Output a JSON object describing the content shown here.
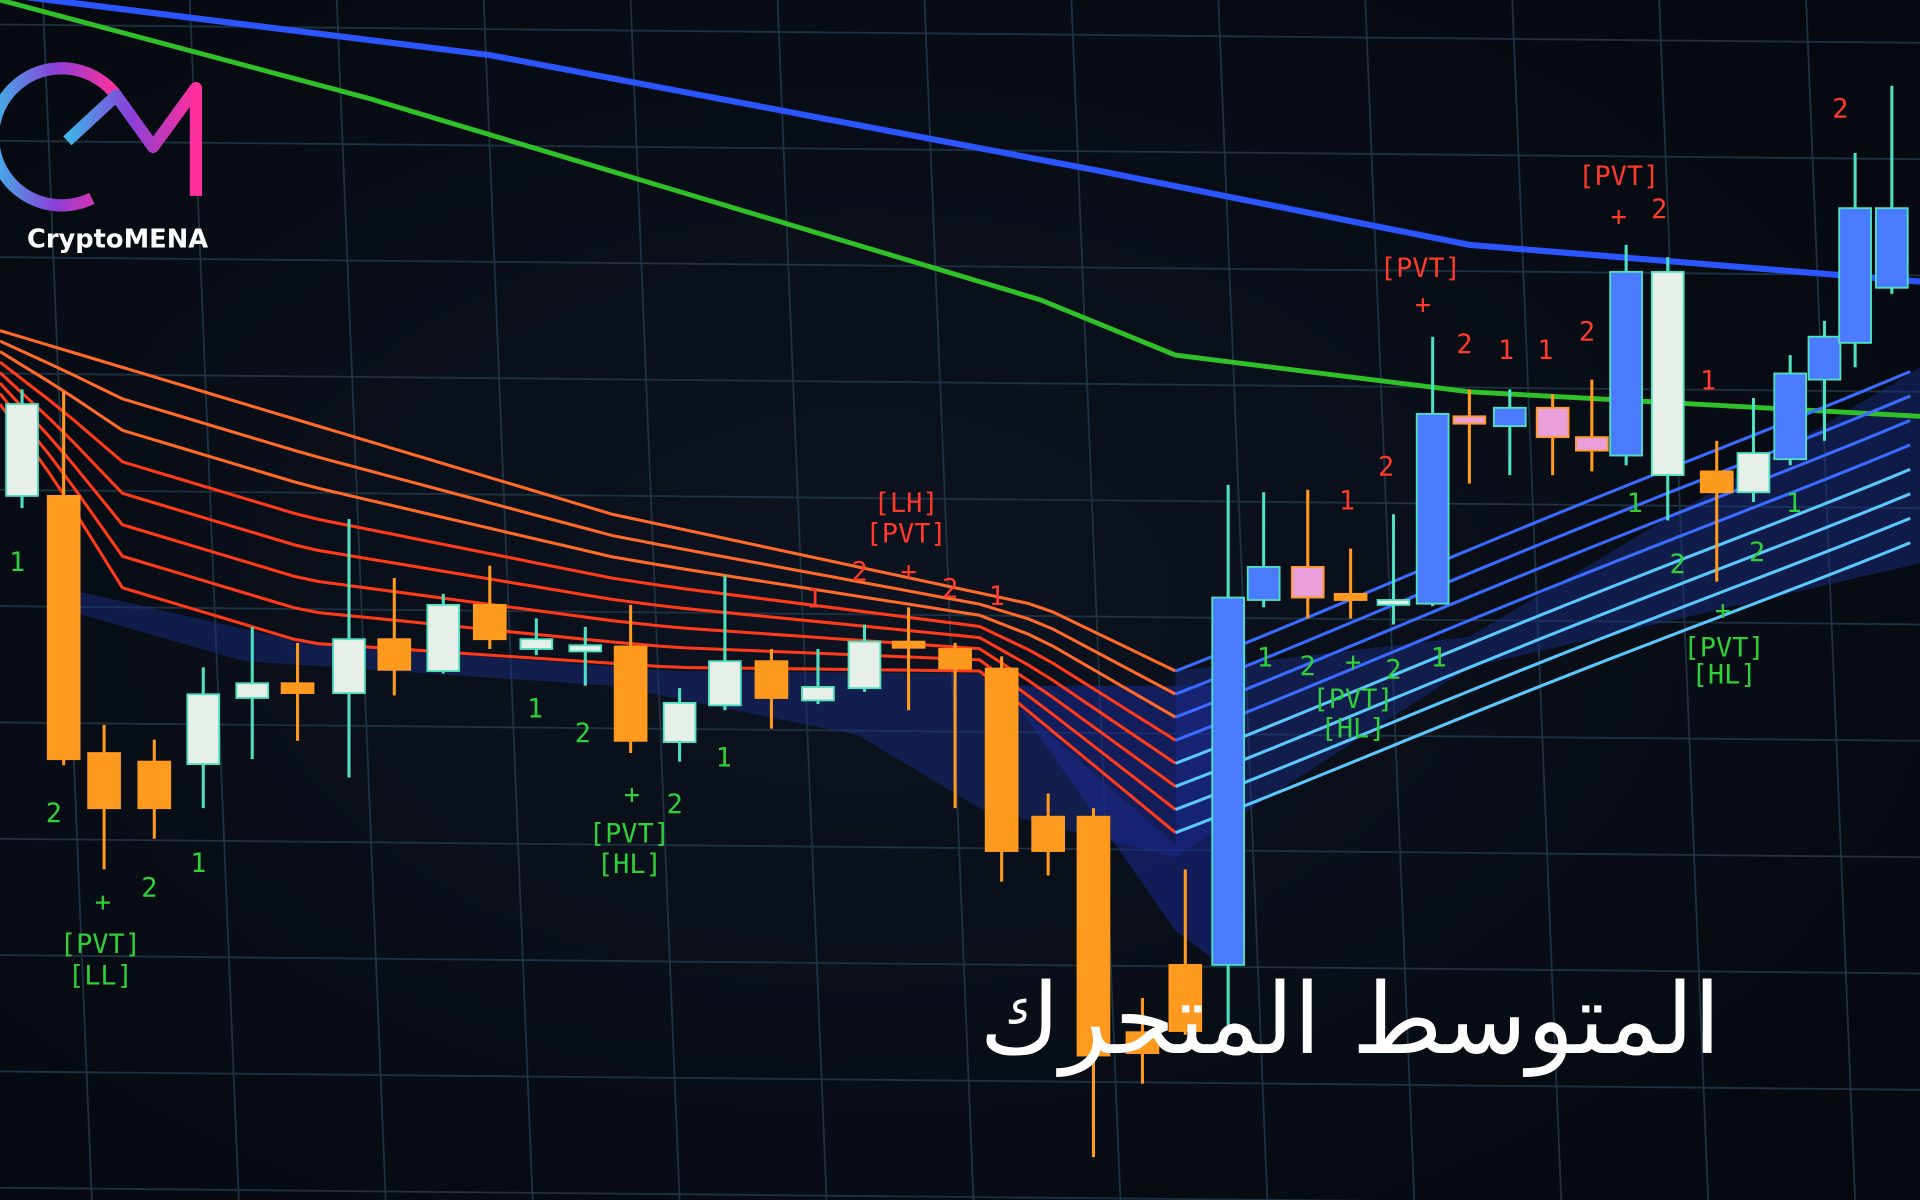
{
  "brand": "CryptoMENA",
  "title": "المتوسط المتحرك",
  "annotations": [
    "1",
    "2",
    "+",
    "2",
    "1",
    "[PVT]",
    "[LL]",
    "1",
    "2",
    "+",
    "2",
    "1",
    "[PVT]",
    "[HL]",
    "[LH]",
    "[PVT]",
    "1",
    "2",
    "+",
    "2",
    "1",
    "1",
    "2",
    "+",
    "2",
    "1",
    "[PVT]",
    "[HL]",
    "1",
    "2",
    "+",
    "[PVT]",
    "2",
    "1",
    "1",
    "2",
    "+",
    "[PVT]",
    "2",
    "1",
    "2",
    "1",
    "2",
    "2",
    "1",
    "+",
    "[PVT]",
    "[HL]"
  ]
}
